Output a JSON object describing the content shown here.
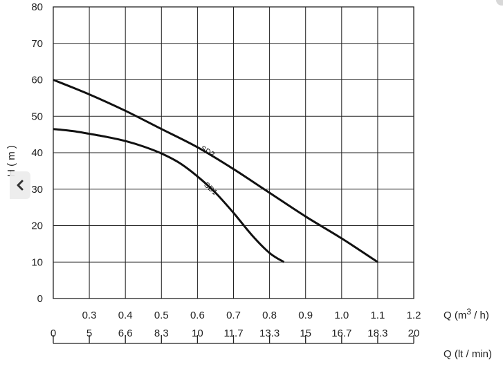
{
  "chart_data": {
    "type": "line",
    "y_axis": {
      "label": "H ( m )",
      "ticks": [
        "0",
        "10",
        "20",
        "30",
        "40",
        "50",
        "60",
        "70",
        "80"
      ],
      "ylim": [
        0,
        80
      ]
    },
    "x_axis_primary": {
      "label": "Q (m³ / h)",
      "label_main": "Q (m",
      "label_sup": "3",
      "label_tail": " / h)",
      "ticks": [
        "0.3",
        "0.4",
        "0.5",
        "0.6",
        "0.7",
        "0.8",
        "0.9",
        "1.0",
        "1.1",
        "1.2"
      ],
      "xlim": [
        0.2,
        1.2
      ]
    },
    "x_axis_secondary": {
      "label": "Q (lt / min)",
      "ticks": [
        "0",
        "5",
        "6.6",
        "8.3",
        "10",
        "11.7",
        "13.3",
        "15",
        "16.7",
        "18.3",
        "20"
      ]
    },
    "grid": true,
    "series": [
      {
        "name": "SD2",
        "x": [
          0.2,
          0.3,
          0.4,
          0.5,
          0.6,
          0.7,
          0.8,
          0.9,
          1.0,
          1.1
        ],
        "y": [
          60,
          56,
          51.5,
          46.5,
          41.5,
          35.5,
          29,
          22.5,
          16.5,
          10
        ]
      },
      {
        "name": "SD1",
        "x": [
          0.2,
          0.25,
          0.3,
          0.35,
          0.4,
          0.45,
          0.5,
          0.55,
          0.6,
          0.65,
          0.7,
          0.75,
          0.8,
          0.84
        ],
        "y": [
          46.5,
          46,
          45.2,
          44.3,
          43.2,
          41.7,
          39.8,
          37.2,
          33.5,
          29,
          23.5,
          17.5,
          12.5,
          10
        ]
      }
    ],
    "colors": {
      "line": "#111111",
      "grid": "#222222",
      "background": "#ffffff"
    }
  },
  "ui": {
    "back_icon": "chevron-left-icon"
  }
}
